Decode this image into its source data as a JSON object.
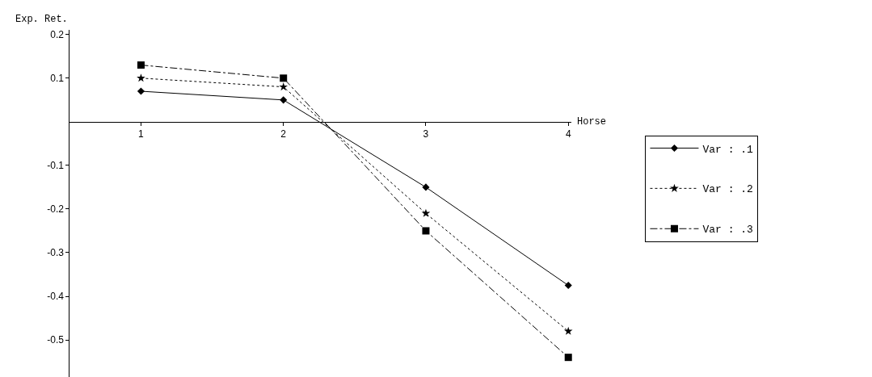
{
  "chart_data": {
    "type": "line",
    "xlabel": "Horse",
    "ylabel": "Exp. Ret.",
    "x": [
      1,
      2,
      3,
      4
    ],
    "series": [
      {
        "name": "Var : .1",
        "color": "#000000",
        "marker": "diamond",
        "line_style": "solid",
        "values": [
          0.07,
          0.05,
          -0.15,
          -0.375
        ]
      },
      {
        "name": "Var : .2",
        "color": "#000000",
        "marker": "star",
        "line_style": "dotted",
        "values": [
          0.1,
          0.08,
          -0.21,
          -0.48
        ]
      },
      {
        "name": "Var : .3",
        "color": "#000000",
        "marker": "square",
        "line_style": "dashdot",
        "values": [
          0.13,
          0.1,
          -0.25,
          -0.54
        ]
      }
    ],
    "xlim": [
      0.5,
      4.02
    ],
    "ylim": [
      -0.585,
      0.21
    ],
    "xticks": [
      1,
      2,
      3,
      4
    ],
    "yticks": [
      -0.5,
      -0.4,
      -0.3,
      -0.2,
      -0.1,
      0.1,
      0.2
    ],
    "legend": "right"
  }
}
